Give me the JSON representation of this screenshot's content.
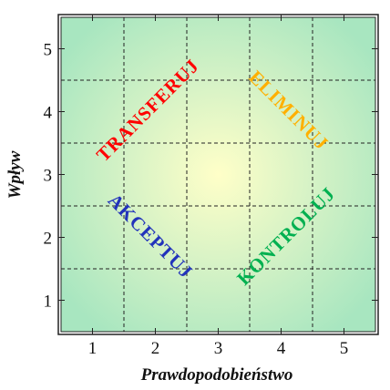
{
  "chart_data": {
    "type": "heatmap",
    "xlabel": "Prawdopodobieństwo",
    "ylabel": "Wpływ",
    "x_ticks": [
      "1",
      "2",
      "3",
      "4",
      "5"
    ],
    "y_ticks": [
      "1",
      "2",
      "3",
      "4",
      "5"
    ],
    "xlim": [
      0.5,
      5.5
    ],
    "ylim": [
      0.5,
      5.5
    ],
    "grid": true,
    "grid_style": "dashed",
    "zones": [
      {
        "label": "TRANSFERUJ",
        "color": "#ff0000",
        "center": [
          1.9,
          4.0
        ],
        "rotation_deg": -45
      },
      {
        "label": "ELIMINUJ",
        "color": "#ffb000",
        "center": [
          4.1,
          4.0
        ],
        "rotation_deg": 45
      },
      {
        "label": "AKCEPTUJ",
        "color": "#2233bb",
        "center": [
          1.9,
          2.0
        ],
        "rotation_deg": 45
      },
      {
        "label": "KONTROLUJ",
        "color": "#00b050",
        "center": [
          4.1,
          2.0
        ],
        "rotation_deg": -45
      }
    ],
    "background": {
      "center_color": "#ffffc8",
      "edge_color": "#a8e6c0"
    }
  }
}
